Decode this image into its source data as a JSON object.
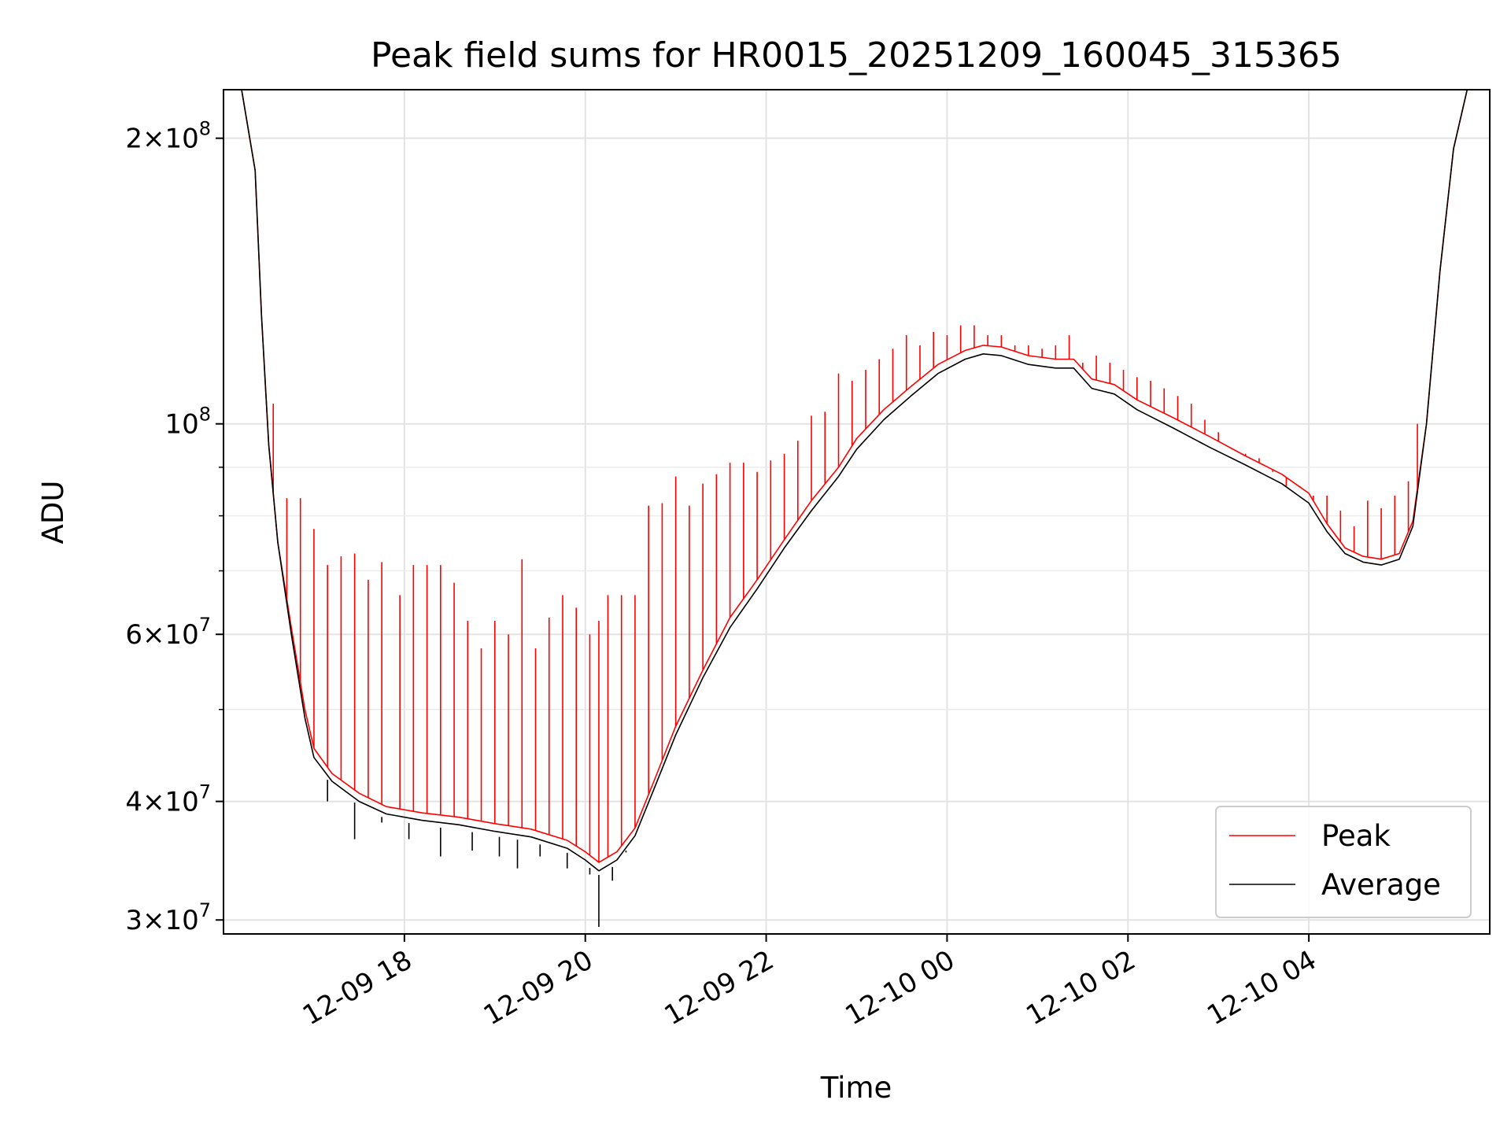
{
  "chart_data": {
    "type": "line",
    "title": "Peak field sums for HR0015_20251209_160045_315365",
    "xlabel": "Time",
    "ylabel": "ADU",
    "yscale": "log",
    "ylim": [
      29000000,
      225000000
    ],
    "xlim_hours_from_1200_dec09": [
      16.0,
      30.0
    ],
    "grid": true,
    "x_ticks": [
      {
        "hour": 18,
        "label": "12-09 18"
      },
      {
        "hour": 20,
        "label": "12-09 20"
      },
      {
        "hour": 22,
        "label": "12-09 22"
      },
      {
        "hour": 24,
        "label": "12-10 00"
      },
      {
        "hour": 26,
        "label": "12-10 02"
      },
      {
        "hour": 28,
        "label": "12-10 04"
      }
    ],
    "y_major_ticks": [
      {
        "value": 30000000,
        "base": "3",
        "exp": "7"
      },
      {
        "value": 40000000,
        "base": "4",
        "exp": "7"
      },
      {
        "value": 60000000,
        "base": "6",
        "exp": "7"
      },
      {
        "value": 100000000,
        "base": "",
        "exp": "8"
      },
      {
        "value": 200000000,
        "base": "2",
        "exp": "8"
      }
    ],
    "y_minor_ticks": [
      50000000,
      70000000,
      80000000,
      90000000
    ],
    "legend": {
      "position": "lower-right",
      "entries": [
        "Peak",
        "Average"
      ]
    },
    "series": [
      {
        "name": "Average",
        "color": "#000000",
        "points": [
          [
            16.0,
            225000000
          ],
          [
            16.2,
            225000000
          ],
          [
            16.35,
            185000000
          ],
          [
            16.42,
            130000000
          ],
          [
            16.5,
            95000000
          ],
          [
            16.6,
            75000000
          ],
          [
            16.75,
            60000000
          ],
          [
            16.9,
            49000000
          ],
          [
            17.0,
            44500000
          ],
          [
            17.2,
            42000000
          ],
          [
            17.5,
            40000000
          ],
          [
            17.8,
            38800000
          ],
          [
            18.2,
            38200000
          ],
          [
            18.6,
            37800000
          ],
          [
            19.0,
            37200000
          ],
          [
            19.4,
            36700000
          ],
          [
            19.8,
            35700000
          ],
          [
            20.0,
            34700000
          ],
          [
            20.15,
            33800000
          ],
          [
            20.35,
            34700000
          ],
          [
            20.55,
            36800000
          ],
          [
            20.75,
            41000000
          ],
          [
            21.0,
            47000000
          ],
          [
            21.3,
            54000000
          ],
          [
            21.6,
            61000000
          ],
          [
            21.9,
            67000000
          ],
          [
            22.2,
            74000000
          ],
          [
            22.5,
            81000000
          ],
          [
            22.8,
            88000000
          ],
          [
            23.0,
            94000000
          ],
          [
            23.3,
            101000000
          ],
          [
            23.6,
            107000000
          ],
          [
            23.9,
            113000000
          ],
          [
            24.2,
            117000000
          ],
          [
            24.4,
            118500000
          ],
          [
            24.6,
            118000000
          ],
          [
            24.9,
            115500000
          ],
          [
            25.2,
            114500000
          ],
          [
            25.4,
            114500000
          ],
          [
            25.6,
            109000000
          ],
          [
            25.85,
            107500000
          ],
          [
            26.1,
            103500000
          ],
          [
            26.5,
            99000000
          ],
          [
            26.9,
            94500000
          ],
          [
            27.3,
            90500000
          ],
          [
            27.7,
            86500000
          ],
          [
            28.0,
            82500000
          ],
          [
            28.2,
            77000000
          ],
          [
            28.4,
            73000000
          ],
          [
            28.6,
            71500000
          ],
          [
            28.8,
            71000000
          ],
          [
            29.0,
            72000000
          ],
          [
            29.15,
            78000000
          ],
          [
            29.3,
            100000000
          ],
          [
            29.45,
            145000000
          ],
          [
            29.6,
            195000000
          ],
          [
            29.75,
            225000000
          ],
          [
            30.0,
            225000000
          ]
        ]
      },
      {
        "name": "Peak",
        "color": "#ff0000",
        "points": [
          [
            16.0,
            225000000
          ],
          [
            16.2,
            225000000
          ],
          [
            16.35,
            185000000
          ],
          [
            16.42,
            130000000
          ],
          [
            16.5,
            95000000
          ],
          [
            16.6,
            75000000
          ],
          [
            16.75,
            61000000
          ],
          [
            16.9,
            50000000
          ],
          [
            17.0,
            45500000
          ],
          [
            17.2,
            42800000
          ],
          [
            17.5,
            40800000
          ],
          [
            17.8,
            39500000
          ],
          [
            18.2,
            38900000
          ],
          [
            18.6,
            38500000
          ],
          [
            19.0,
            37900000
          ],
          [
            19.4,
            37400000
          ],
          [
            19.8,
            36400000
          ],
          [
            20.0,
            35400000
          ],
          [
            20.15,
            34500000
          ],
          [
            20.35,
            35400000
          ],
          [
            20.55,
            37500000
          ],
          [
            20.75,
            41800000
          ],
          [
            21.0,
            48000000
          ],
          [
            21.3,
            55000000
          ],
          [
            21.6,
            62500000
          ],
          [
            21.9,
            68500000
          ],
          [
            22.2,
            75500000
          ],
          [
            22.5,
            83000000
          ],
          [
            22.8,
            90000000
          ],
          [
            23.0,
            96500000
          ],
          [
            23.3,
            103500000
          ],
          [
            23.6,
            109500000
          ],
          [
            23.9,
            115500000
          ],
          [
            24.2,
            119500000
          ],
          [
            24.4,
            121000000
          ],
          [
            24.6,
            120500000
          ],
          [
            24.9,
            118000000
          ],
          [
            25.2,
            117000000
          ],
          [
            25.4,
            117000000
          ],
          [
            25.6,
            111500000
          ],
          [
            25.85,
            110000000
          ],
          [
            26.1,
            106000000
          ],
          [
            26.5,
            101500000
          ],
          [
            26.9,
            97000000
          ],
          [
            27.3,
            92500000
          ],
          [
            27.7,
            88500000
          ],
          [
            28.0,
            84500000
          ],
          [
            28.2,
            78500000
          ],
          [
            28.4,
            74000000
          ],
          [
            28.6,
            72500000
          ],
          [
            28.8,
            72000000
          ],
          [
            29.0,
            73000000
          ],
          [
            29.15,
            79000000
          ],
          [
            29.3,
            100000000
          ],
          [
            29.45,
            145000000
          ],
          [
            29.6,
            195000000
          ],
          [
            29.75,
            225000000
          ],
          [
            30.0,
            225000000
          ]
        ],
        "spikes": [
          [
            16.55,
            105000000
          ],
          [
            16.7,
            83500000
          ],
          [
            16.85,
            83500000
          ],
          [
            17.0,
            77500000
          ],
          [
            17.15,
            71000000
          ],
          [
            17.3,
            72500000
          ],
          [
            17.45,
            73000000
          ],
          [
            17.6,
            68500000
          ],
          [
            17.75,
            71500000
          ],
          [
            17.95,
            66000000
          ],
          [
            18.1,
            71000000
          ],
          [
            18.25,
            71000000
          ],
          [
            18.4,
            71000000
          ],
          [
            18.55,
            68000000
          ],
          [
            18.7,
            62000000
          ],
          [
            18.85,
            58000000
          ],
          [
            19.0,
            62000000
          ],
          [
            19.15,
            60000000
          ],
          [
            19.3,
            72000000
          ],
          [
            19.45,
            58000000
          ],
          [
            19.6,
            62500000
          ],
          [
            19.75,
            66000000
          ],
          [
            19.9,
            64000000
          ],
          [
            20.05,
            60000000
          ],
          [
            20.15,
            62000000
          ],
          [
            20.25,
            66000000
          ],
          [
            20.4,
            66000000
          ],
          [
            20.55,
            66000000
          ],
          [
            20.7,
            82000000
          ],
          [
            20.85,
            82500000
          ],
          [
            21.0,
            88000000
          ],
          [
            21.15,
            82000000
          ],
          [
            21.3,
            86500000
          ],
          [
            21.45,
            88500000
          ],
          [
            21.6,
            91000000
          ],
          [
            21.75,
            91000000
          ],
          [
            21.9,
            89000000
          ],
          [
            22.05,
            91500000
          ],
          [
            22.2,
            93000000
          ],
          [
            22.35,
            96000000
          ],
          [
            22.5,
            102000000
          ],
          [
            22.65,
            103000000
          ],
          [
            22.8,
            113000000
          ],
          [
            22.95,
            111000000
          ],
          [
            23.1,
            114000000
          ],
          [
            23.25,
            117000000
          ],
          [
            23.4,
            120000000
          ],
          [
            23.55,
            124000000
          ],
          [
            23.7,
            121000000
          ],
          [
            23.85,
            125000000
          ],
          [
            24.0,
            124000000
          ],
          [
            24.15,
            127000000
          ],
          [
            24.3,
            127000000
          ],
          [
            24.45,
            124000000
          ],
          [
            24.6,
            124000000
          ],
          [
            24.75,
            121000000
          ],
          [
            24.9,
            121000000
          ],
          [
            25.05,
            120000000
          ],
          [
            25.2,
            121000000
          ],
          [
            25.35,
            124000000
          ],
          [
            25.5,
            116000000
          ],
          [
            25.65,
            118000000
          ],
          [
            25.8,
            116000000
          ],
          [
            25.95,
            114000000
          ],
          [
            26.1,
            112000000
          ],
          [
            26.25,
            111000000
          ],
          [
            26.4,
            109000000
          ],
          [
            26.55,
            107000000
          ],
          [
            26.7,
            105000000
          ],
          [
            26.85,
            101000000
          ],
          [
            27.0,
            98000000
          ],
          [
            27.15,
            94000000
          ],
          [
            27.3,
            93000000
          ],
          [
            27.45,
            92000000
          ],
          [
            27.6,
            89000000
          ],
          [
            27.75,
            86000000
          ],
          [
            27.9,
            86000000
          ],
          [
            28.05,
            84000000
          ],
          [
            28.2,
            84000000
          ],
          [
            28.35,
            81000000
          ],
          [
            28.5,
            78000000
          ],
          [
            28.65,
            83000000
          ],
          [
            28.8,
            81500000
          ],
          [
            28.95,
            84000000
          ],
          [
            29.1,
            87000000
          ],
          [
            29.2,
            100000000
          ]
        ],
        "dips": [
          [
            17.15,
            40000000
          ],
          [
            17.45,
            36500000
          ],
          [
            17.75,
            38000000
          ],
          [
            18.05,
            36500000
          ],
          [
            18.4,
            35000000
          ],
          [
            18.75,
            35500000
          ],
          [
            19.05,
            35000000
          ],
          [
            19.25,
            34000000
          ],
          [
            19.5,
            35000000
          ],
          [
            19.8,
            34000000
          ],
          [
            20.05,
            33500000
          ],
          [
            20.15,
            29500000
          ],
          [
            20.3,
            33000000
          ],
          [
            20.45,
            35500000
          ]
        ]
      }
    ]
  }
}
